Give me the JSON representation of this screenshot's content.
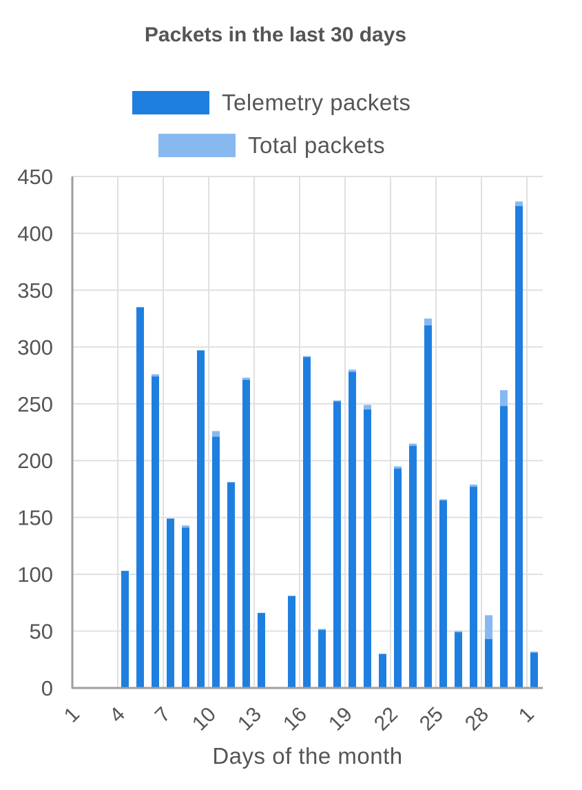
{
  "colors": {
    "telemetry": "#1f7fe0",
    "total": "#87b9f0",
    "grid": "#e0e0e0",
    "axis": "#9e9e9e"
  },
  "chart_data": {
    "type": "bar",
    "title": "Packets in the last 30 days",
    "xlabel": "Days of the month",
    "ylabel": "",
    "ylim": [
      0,
      450
    ],
    "yticks": [
      0,
      50,
      100,
      150,
      200,
      250,
      300,
      350,
      400,
      450
    ],
    "grid": true,
    "stacked": "overlay",
    "legend": "top",
    "categories": [
      "1",
      "2",
      "3",
      "4",
      "5",
      "6",
      "7",
      "8",
      "9",
      "10",
      "11",
      "12",
      "13",
      "14",
      "15",
      "16",
      "17",
      "18",
      "19",
      "20",
      "21",
      "22",
      "23",
      "24",
      "25",
      "26",
      "27",
      "28",
      "29",
      "30",
      "1"
    ],
    "xtick_labels": [
      "1",
      "4",
      "7",
      "10",
      "13",
      "16",
      "19",
      "22",
      "25",
      "28",
      "1"
    ],
    "series": [
      {
        "name": "Telemetry packets",
        "values": [
          0,
          0,
          0,
          103,
          335,
          274,
          149,
          141,
          297,
          221,
          181,
          271,
          66,
          0,
          81,
          291,
          51,
          252,
          278,
          245,
          30,
          193,
          213,
          319,
          165,
          49,
          177,
          43,
          248,
          424,
          31
        ]
      },
      {
        "name": "Total packets",
        "values": [
          0,
          0,
          0,
          103,
          335,
          276,
          149,
          143,
          297,
          226,
          181,
          273,
          66,
          0,
          81,
          292,
          52,
          253,
          280,
          249,
          30,
          195,
          215,
          325,
          166,
          50,
          179,
          64,
          262,
          428,
          32
        ]
      }
    ]
  }
}
